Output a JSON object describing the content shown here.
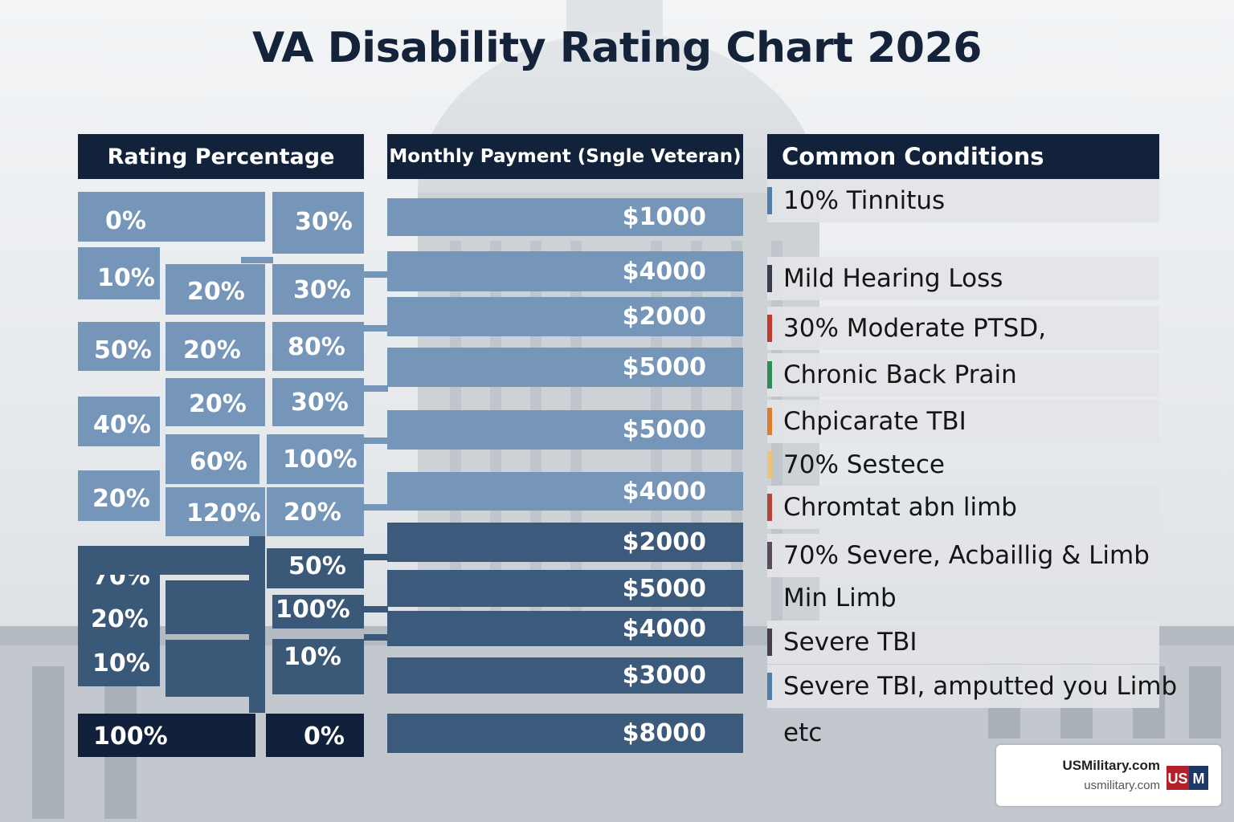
{
  "title": "VA Disability Rating Chart 2026",
  "headers": {
    "rating": "Rating Percentage",
    "payment": "Monthly Payment (Sngle Veteran)",
    "conditions": "Common Conditions"
  },
  "rating_cells": [
    "0%",
    "30%",
    "10%",
    "20%",
    "30%",
    "50%",
    "20%",
    "80%",
    "40%",
    "20%",
    "30%",
    "60%",
    "100%",
    "20%",
    "120%",
    "20%",
    "70%",
    "50%",
    "20%",
    "100%",
    "10%",
    "10%",
    "100%",
    "0%"
  ],
  "payments": [
    "$1000",
    "$4000",
    "$2000",
    "$5000",
    "$5000",
    "$4000",
    "$2000",
    "$5000",
    "$4000",
    "$3000",
    "$8000"
  ],
  "conditions": [
    {
      "text": "10% Tinnitus",
      "color": "#4f7ea8"
    },
    {
      "text": "Mild Hearing Loss",
      "color": "#3b3b4e"
    },
    {
      "text": "30% Moderate PTSD,",
      "color": "#c0392b"
    },
    {
      "text": "Chronic Back Prain",
      "color": "#2e8b57"
    },
    {
      "text": "Chpicarate TBI",
      "color": "#e07b2a"
    },
    {
      "text": "70% Sestece",
      "color": "#eec277"
    },
    {
      "text": "Chromtat abn limb",
      "color": "#b5433a"
    },
    {
      "text": "70% Severe, Acbaillig & Limb",
      "color": "#5a4a5c"
    },
    {
      "text": "Min Limb",
      "color": ""
    },
    {
      "text": "Severe TBI",
      "color": "#4a3d4a"
    },
    {
      "text": "Severe TBI, amputted you Limb",
      "color": "#4f7ea8"
    },
    {
      "text": "etc",
      "color": ""
    }
  ],
  "logo": {
    "name": "USMilitary.com",
    "url": "usmilitary.com",
    "mark_left": "US",
    "mark_right": "M"
  }
}
